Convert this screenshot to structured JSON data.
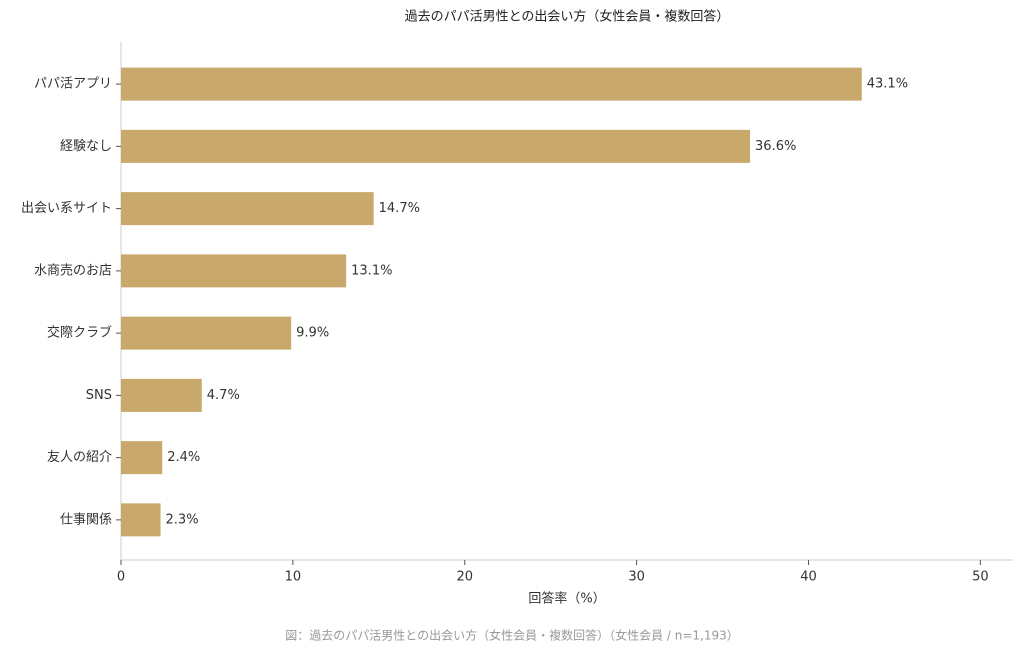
{
  "chart_data": {
    "type": "bar",
    "orientation": "horizontal",
    "title": "過去のパパ活男性との出会い方（女性会員・複数回答）",
    "categories": [
      "パパ活アプリ",
      "経験なし",
      "出会い系サイト",
      "水商売のお店",
      "交際クラブ",
      "SNS",
      "友人の紹介",
      "仕事関係"
    ],
    "values": [
      43.1,
      36.6,
      14.7,
      13.1,
      9.9,
      4.7,
      2.4,
      2.3
    ],
    "value_labels": [
      "43.1%",
      "36.6%",
      "14.7%",
      "13.1%",
      "9.9%",
      "4.7%",
      "2.4%",
      "2.3%"
    ],
    "color": "#c8a86b",
    "xlim": [
      0,
      51.9
    ],
    "xticks": [
      0,
      10,
      20,
      30,
      40,
      50
    ],
    "xlabel": "回答率（%）",
    "caption": "図：過去のパパ活男性との出会い方（女性会員・複数回答）（女性会員 / n=1,193）"
  }
}
